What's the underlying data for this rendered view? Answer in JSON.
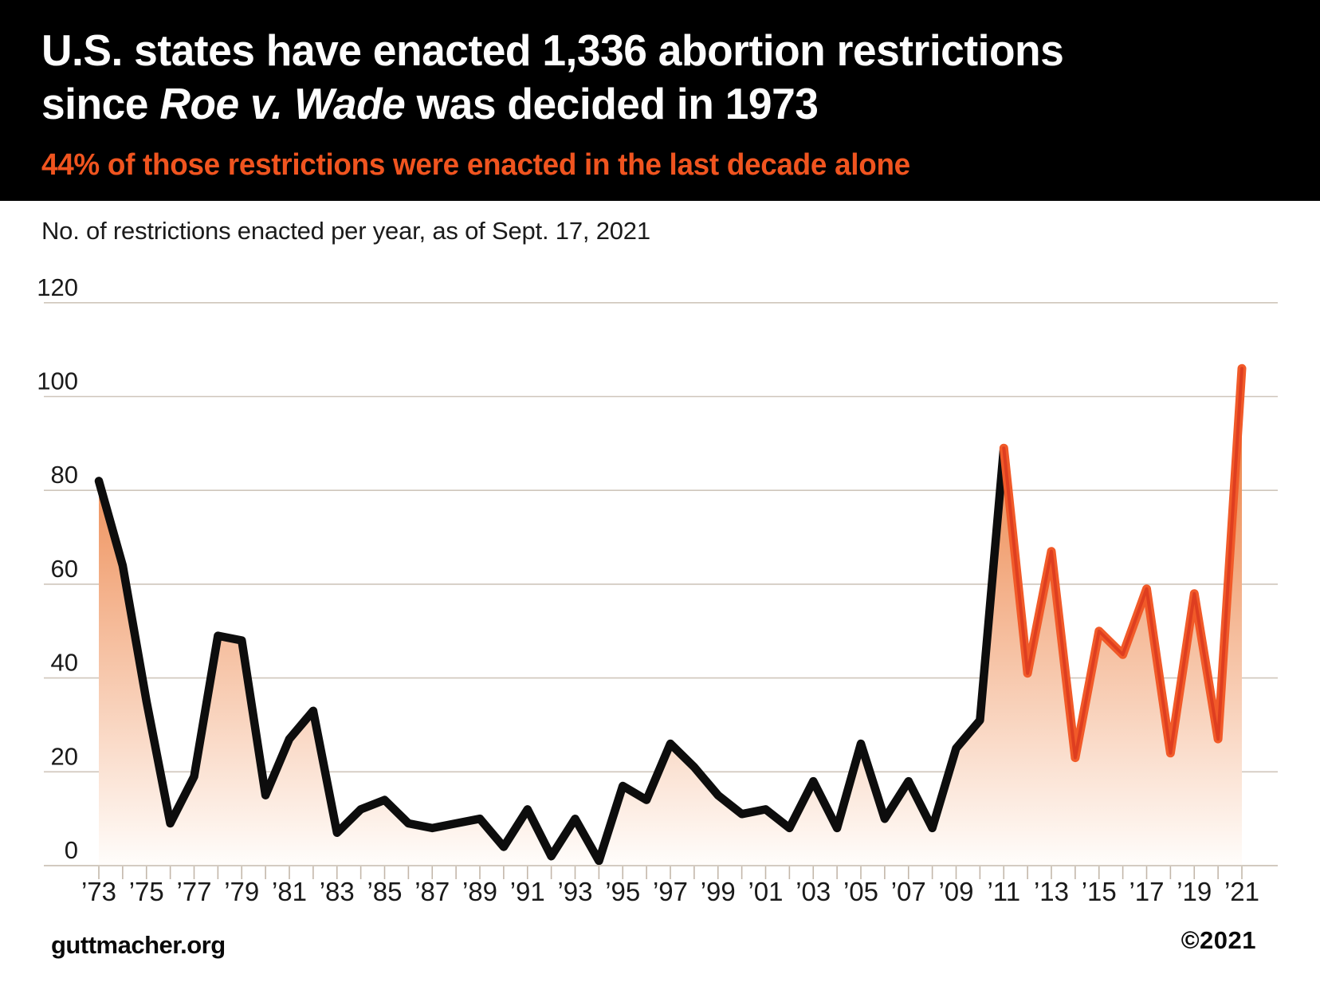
{
  "header": {
    "title_line1": "U.S. states have enacted 1,336 abortion restrictions",
    "title_line2_pre": "since ",
    "title_line2_case": "Roe v. Wade",
    "title_line2_post": " was decided in 1973",
    "subtitle": "44% of those restrictions were enacted in the last decade alone"
  },
  "chart_note": "No. of restrictions enacted per year, as of Sept. 17, 2021",
  "chart_data": {
    "type": "line",
    "title": "No. of restrictions enacted per year, as of Sept. 17, 2021",
    "x": [
      1973,
      1974,
      1975,
      1976,
      1977,
      1978,
      1979,
      1980,
      1981,
      1982,
      1983,
      1984,
      1985,
      1986,
      1987,
      1988,
      1989,
      1990,
      1991,
      1992,
      1993,
      1994,
      1995,
      1996,
      1997,
      1998,
      1999,
      2000,
      2001,
      2002,
      2003,
      2004,
      2005,
      2006,
      2007,
      2008,
      2009,
      2010,
      2011,
      2012,
      2013,
      2014,
      2015,
      2016,
      2017,
      2018,
      2019,
      2020,
      2021
    ],
    "values": [
      82,
      64,
      35,
      9,
      19,
      49,
      48,
      15,
      27,
      33,
      7,
      12,
      14,
      9,
      8,
      9,
      10,
      4,
      12,
      2,
      10,
      1,
      17,
      14,
      26,
      21,
      15,
      11,
      12,
      8,
      18,
      8,
      26,
      10,
      18,
      8,
      25,
      31,
      89,
      41,
      67,
      23,
      50,
      45,
      59,
      24,
      58,
      27,
      106
    ],
    "highlight_from_year": 2011,
    "total_since_1973": "1,336",
    "share_last_decade": "44%",
    "ylim": [
      0,
      120
    ],
    "yticks": [
      0,
      20,
      40,
      60,
      80,
      100,
      120
    ],
    "xtick_label_years": [
      1973,
      1975,
      1977,
      1979,
      1981,
      1983,
      1985,
      1987,
      1989,
      1991,
      1993,
      1995,
      1997,
      1999,
      2001,
      2003,
      2005,
      2007,
      2009,
      2011,
      2013,
      2015,
      2017,
      2019,
      2021
    ],
    "grid": true,
    "legend": "none",
    "colors": {
      "accent_orange": "#f0541f",
      "line_black": "#0d0d0d",
      "line_orange_outer": "#f15a29",
      "line_orange_core": "#da3a1e",
      "grid": "#cfc6bb",
      "axis": "#c3b7aa",
      "fill_top": "#ea732f",
      "fill_bottom": "#fffdfb",
      "label": "#1a1a1a"
    }
  },
  "footer": {
    "site": "guttmacher.org",
    "copyright": "©2021"
  }
}
